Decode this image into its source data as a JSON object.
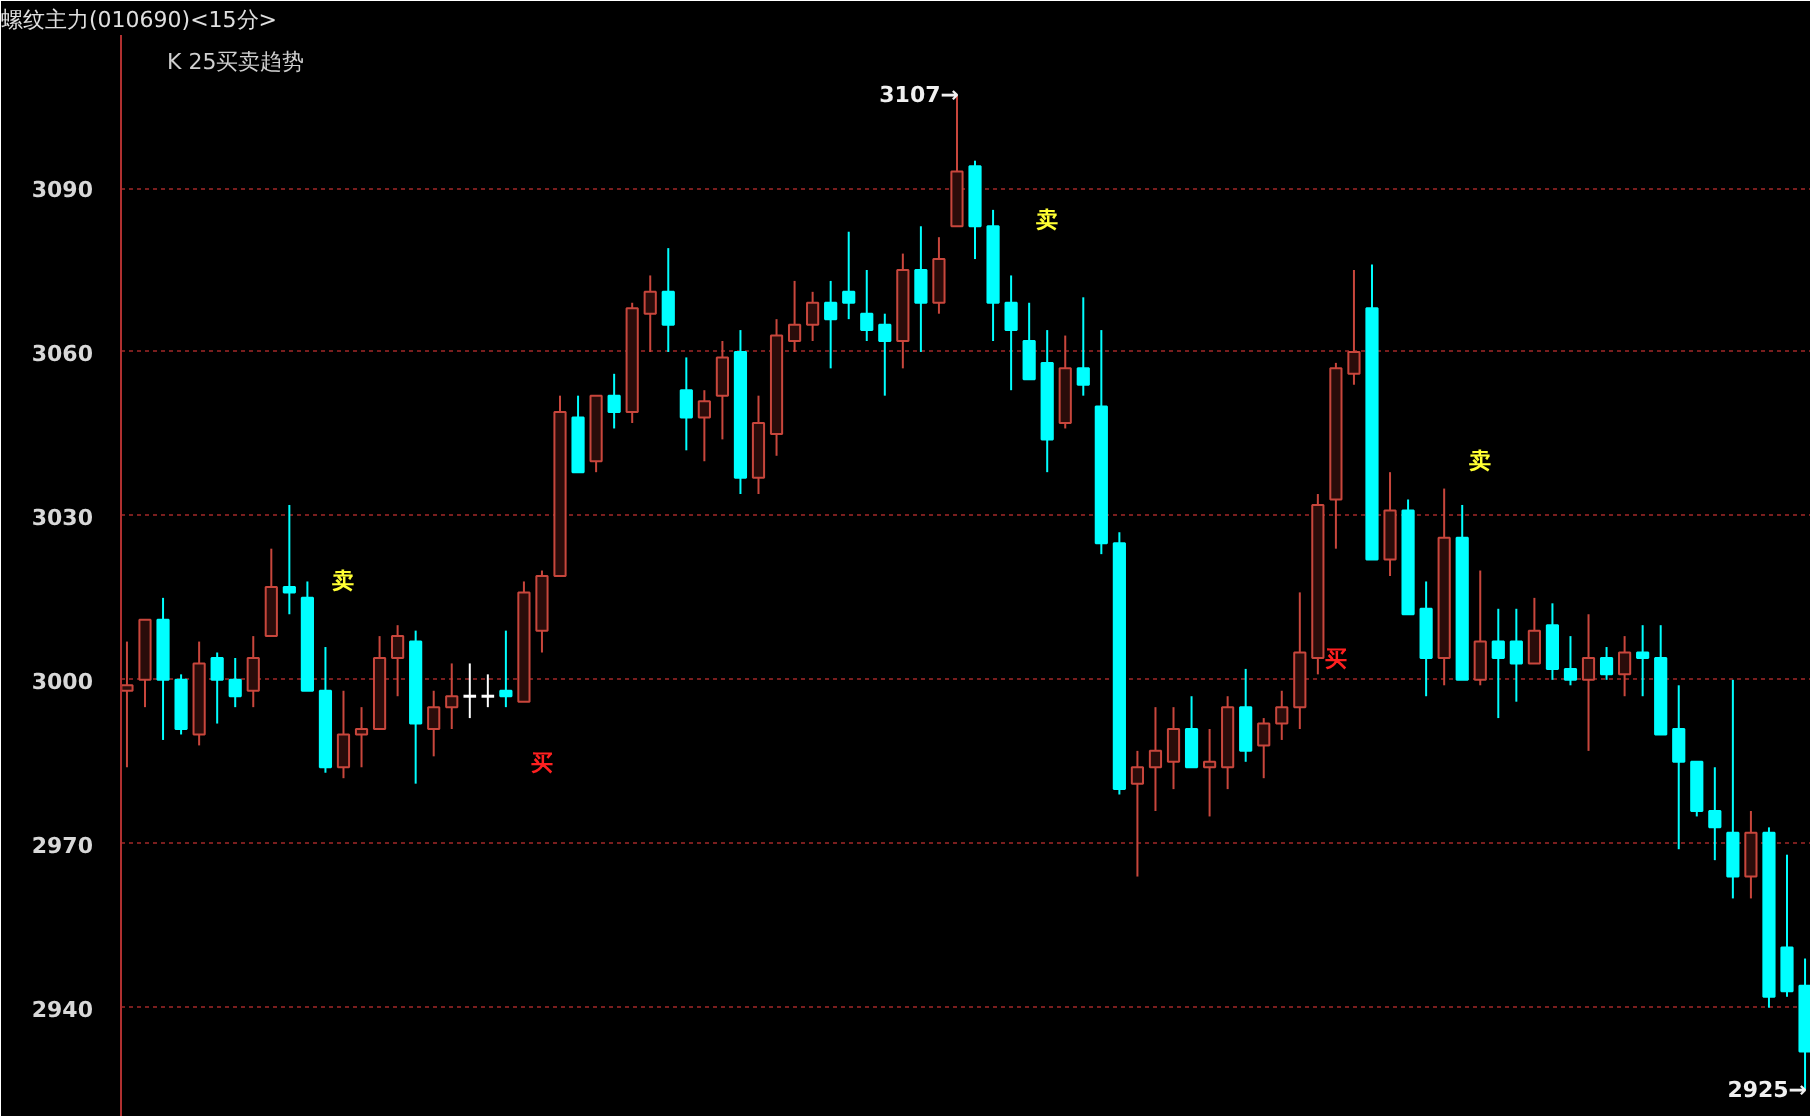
{
  "chart_data": {
    "type": "candlestick",
    "title": "螺纹主力(010690)<15分>",
    "subtitle": "K  25买卖趋势",
    "categories": [
      null,
      null,
      null,
      null,
      null,
      null,
      null,
      null,
      null,
      null,
      null,
      null,
      null,
      null,
      null,
      null,
      null,
      null,
      null,
      null,
      null,
      null,
      null,
      null,
      null,
      null,
      null,
      null,
      null,
      null,
      null,
      null,
      null,
      null,
      null,
      null,
      null,
      null,
      null,
      null,
      null,
      null,
      null,
      null,
      null,
      null,
      null,
      null,
      null,
      null,
      null,
      null,
      null,
      null,
      null,
      null,
      null,
      null,
      null,
      null,
      null,
      null,
      null,
      null,
      null,
      null,
      null,
      null,
      null,
      null,
      null,
      null,
      null,
      null,
      null,
      null,
      null,
      null,
      null,
      null,
      null,
      null,
      null,
      null,
      null,
      null,
      null,
      null,
      null,
      null,
      null,
      null,
      null,
      null
    ],
    "ohlc": [
      [
        2998,
        3007,
        2984,
        2999
      ],
      [
        3000,
        3011,
        2995,
        3011
      ],
      [
        3011,
        3015,
        2989,
        3000
      ],
      [
        3000,
        3001,
        2990,
        2991
      ],
      [
        2990,
        3007,
        2988,
        3003
      ],
      [
        3004,
        3005,
        2992,
        3000
      ],
      [
        3000,
        3004,
        2995,
        2997
      ],
      [
        2998,
        3008,
        2995,
        3004
      ],
      [
        3008,
        3024,
        3008,
        3017
      ],
      [
        3017,
        3032,
        3012,
        3016
      ],
      [
        3015,
        3018,
        2998,
        2998
      ],
      [
        2998,
        3006,
        2983,
        2984
      ],
      [
        2984,
        2998,
        2982,
        2990
      ],
      [
        2990,
        2995,
        2984,
        2991
      ],
      [
        2991,
        3008,
        2991,
        3004
      ],
      [
        3004,
        3010,
        2997,
        3008
      ],
      [
        3007,
        3009,
        2981,
        2992
      ],
      [
        2991,
        2998,
        2986,
        2995
      ],
      [
        2995,
        3003,
        2991,
        2997
      ],
      [
        2997,
        3003,
        2993,
        2997
      ],
      [
        2997,
        3001,
        2995,
        2997
      ],
      [
        2998,
        3009,
        2995,
        2997
      ],
      [
        2996,
        3018,
        2996,
        3016
      ],
      [
        3009,
        3020,
        3005,
        3019
      ],
      [
        3019,
        3052,
        3019,
        3049
      ],
      [
        3048,
        3052,
        3038,
        3038
      ],
      [
        3040,
        3052,
        3038,
        3052
      ],
      [
        3052,
        3056,
        3046,
        3049
      ],
      [
        3049,
        3069,
        3047,
        3068
      ],
      [
        3067,
        3074,
        3060,
        3071
      ],
      [
        3071,
        3079,
        3060,
        3065
      ],
      [
        3053,
        3059,
        3042,
        3048
      ],
      [
        3048,
        3053,
        3040,
        3051
      ],
      [
        3052,
        3062,
        3044,
        3059
      ],
      [
        3060,
        3064,
        3034,
        3037
      ],
      [
        3037,
        3052,
        3034,
        3047
      ],
      [
        3045,
        3066,
        3041,
        3063
      ],
      [
        3062,
        3073,
        3060,
        3065
      ],
      [
        3065,
        3071,
        3062,
        3069
      ],
      [
        3069,
        3073,
        3057,
        3066
      ],
      [
        3071,
        3082,
        3066,
        3069
      ],
      [
        3067,
        3075,
        3062,
        3064
      ],
      [
        3065,
        3067,
        3052,
        3062
      ],
      [
        3062,
        3078,
        3057,
        3075
      ],
      [
        3075,
        3083,
        3060,
        3069
      ],
      [
        3069,
        3081,
        3067,
        3077
      ],
      [
        3083,
        3107,
        3083,
        3093
      ],
      [
        3094,
        3095,
        3077,
        3083
      ],
      [
        3083,
        3086,
        3062,
        3069
      ],
      [
        3069,
        3074,
        3053,
        3064
      ],
      [
        3062,
        3069,
        3055,
        3055
      ],
      [
        3058,
        3064,
        3038,
        3044
      ],
      [
        3047,
        3063,
        3046,
        3057
      ],
      [
        3057,
        3070,
        3052,
        3054
      ],
      [
        3050,
        3064,
        3023,
        3025
      ],
      [
        3025,
        3027,
        2979,
        2980
      ],
      [
        2981,
        2987,
        2964,
        2984
      ],
      [
        2984,
        2995,
        2976,
        2987
      ],
      [
        2985,
        2995,
        2980,
        2991
      ],
      [
        2991,
        2997,
        2984,
        2984
      ],
      [
        2984,
        2991,
        2975,
        2985
      ],
      [
        2984,
        2997,
        2980,
        2995
      ],
      [
        2995,
        3002,
        2985,
        2987
      ],
      [
        2988,
        2993,
        2982,
        2992
      ],
      [
        2992,
        2998,
        2989,
        2995
      ],
      [
        2995,
        3016,
        2991,
        3005
      ],
      [
        3004,
        3034,
        3001,
        3032
      ],
      [
        3033,
        3058,
        3024,
        3057
      ],
      [
        3056,
        3075,
        3054,
        3060
      ],
      [
        3068,
        3076,
        3022,
        3022
      ],
      [
        3022,
        3038,
        3019,
        3031
      ],
      [
        3031,
        3033,
        3012,
        3012
      ],
      [
        3013,
        3018,
        2997,
        3004
      ],
      [
        3004,
        3035,
        2999,
        3026
      ],
      [
        3026,
        3032,
        3000,
        3000
      ],
      [
        3000,
        3020,
        2999,
        3007
      ],
      [
        3007,
        3013,
        2993,
        3004
      ],
      [
        3007,
        3013,
        2996,
        3003
      ],
      [
        3003,
        3015,
        3003,
        3009
      ],
      [
        3010,
        3014,
        3000,
        3002
      ],
      [
        3002,
        3008,
        2999,
        3000
      ],
      [
        3000,
        3012,
        2987,
        3004
      ],
      [
        3004,
        3006,
        3000,
        3001
      ],
      [
        3001,
        3008,
        2997,
        3005
      ],
      [
        3005,
        3010,
        2997,
        3004
      ],
      [
        3004,
        3010,
        2990,
        2990
      ],
      [
        2991,
        2999,
        2969,
        2985
      ],
      [
        2985,
        2985,
        2975,
        2976
      ],
      [
        2976,
        2984,
        2967,
        2973
      ],
      [
        2972,
        3000,
        2960,
        2964
      ],
      [
        2964,
        2976,
        2960,
        2972
      ],
      [
        2972,
        2973,
        2940,
        2942
      ],
      [
        2951,
        2968,
        2942,
        2943
      ],
      [
        2944,
        2949,
        2925,
        2932
      ]
    ],
    "colors": [
      "#c8463c",
      "#c8463c",
      "#00ffff",
      "#00ffff",
      "#c8463c",
      "#00ffff",
      "#00ffff",
      "#c8463c",
      "#c8463c",
      "#00ffff",
      "#00ffff",
      "#00ffff",
      "#c8463c",
      "#c8463c",
      "#c8463c",
      "#c8463c",
      "#00ffff",
      "#c8463c",
      "#c8463c",
      "#ffffff",
      "#ffffff",
      "#00ffff",
      "#c8463c",
      "#c8463c",
      "#c8463c",
      "#00ffff",
      "#c8463c",
      "#00ffff",
      "#c8463c",
      "#c8463c",
      "#00ffff",
      "#00ffff",
      "#c8463c",
      "#c8463c",
      "#00ffff",
      "#c8463c",
      "#c8463c",
      "#c8463c",
      "#c8463c",
      "#00ffff",
      "#00ffff",
      "#00ffff",
      "#00ffff",
      "#c8463c",
      "#00ffff",
      "#c8463c",
      "#c8463c",
      "#00ffff",
      "#00ffff",
      "#00ffff",
      "#00ffff",
      "#00ffff",
      "#c8463c",
      "#00ffff",
      "#00ffff",
      "#00ffff",
      "#c8463c",
      "#c8463c",
      "#c8463c",
      "#00ffff",
      "#c8463c",
      "#c8463c",
      "#00ffff",
      "#c8463c",
      "#c8463c",
      "#c8463c",
      "#c8463c",
      "#c8463c",
      "#c8463c",
      "#00ffff",
      "#c8463c",
      "#00ffff",
      "#00ffff",
      "#c8463c",
      "#00ffff",
      "#c8463c",
      "#00ffff",
      "#00ffff",
      "#c8463c",
      "#00ffff",
      "#00ffff",
      "#c8463c",
      "#00ffff",
      "#c8463c",
      "#00ffff",
      "#00ffff",
      "#00ffff",
      "#00ffff",
      "#00ffff",
      "#00ffff",
      "#c8463c",
      "#00ffff",
      "#00ffff",
      "#00ffff"
    ],
    "ylim": [
      2920,
      3118
    ],
    "yticks": [
      2940,
      2970,
      3000,
      3030,
      3060,
      3090
    ],
    "tick_labels": "y",
    "grid": "y",
    "value_labels": [
      null,
      null,
      null,
      null,
      null,
      null,
      null,
      null,
      null,
      null,
      null,
      null,
      "卖",
      null,
      null,
      null,
      null,
      null,
      null,
      null,
      null,
      null,
      null,
      "买",
      null,
      null,
      null,
      null,
      null,
      null,
      null,
      null,
      null,
      null,
      null,
      null,
      null,
      null,
      null,
      null,
      null,
      null,
      null,
      null,
      null,
      null,
      null,
      null,
      null,
      null,
      null,
      "卖",
      null,
      null,
      null,
      null,
      null,
      null,
      null,
      null,
      null,
      null,
      null,
      null,
      null,
      null,
      null,
      "买",
      null,
      null,
      null,
      null,
      null,
      null,
      null,
      "卖",
      null,
      null,
      null,
      null,
      null,
      null,
      null,
      null,
      null,
      null,
      null,
      null,
      null,
      null,
      null,
      null,
      null,
      null
    ],
    "annotations": [
      "3107→",
      "2925→"
    ]
  }
}
